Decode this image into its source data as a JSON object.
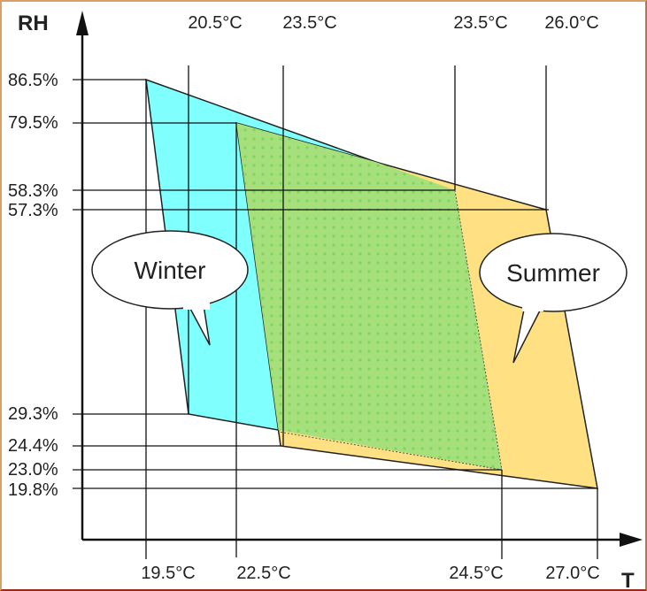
{
  "axes": {
    "y_title": "RH",
    "x_title": "T"
  },
  "rh_labels": [
    "86.5%",
    "79.5%",
    "58.3%",
    "57.3%",
    "29.3%",
    "24.4%",
    "23.0%",
    "19.8%"
  ],
  "top_temp_labels": [
    "20.5°C",
    "23.5°C",
    "23.5°C",
    "26.0°C"
  ],
  "bottom_temp_labels": [
    "19.5°C",
    "22.5°C",
    "24.5°C",
    "27.0°C"
  ],
  "callouts": {
    "winter": "Winter",
    "summer": "Summer"
  },
  "colors": {
    "winter": "#80ffff",
    "summer": "#ffe082",
    "overlap": "#9de07a",
    "frame_top": "#d9a066",
    "frame_bottom": "#9a2a1a"
  }
}
